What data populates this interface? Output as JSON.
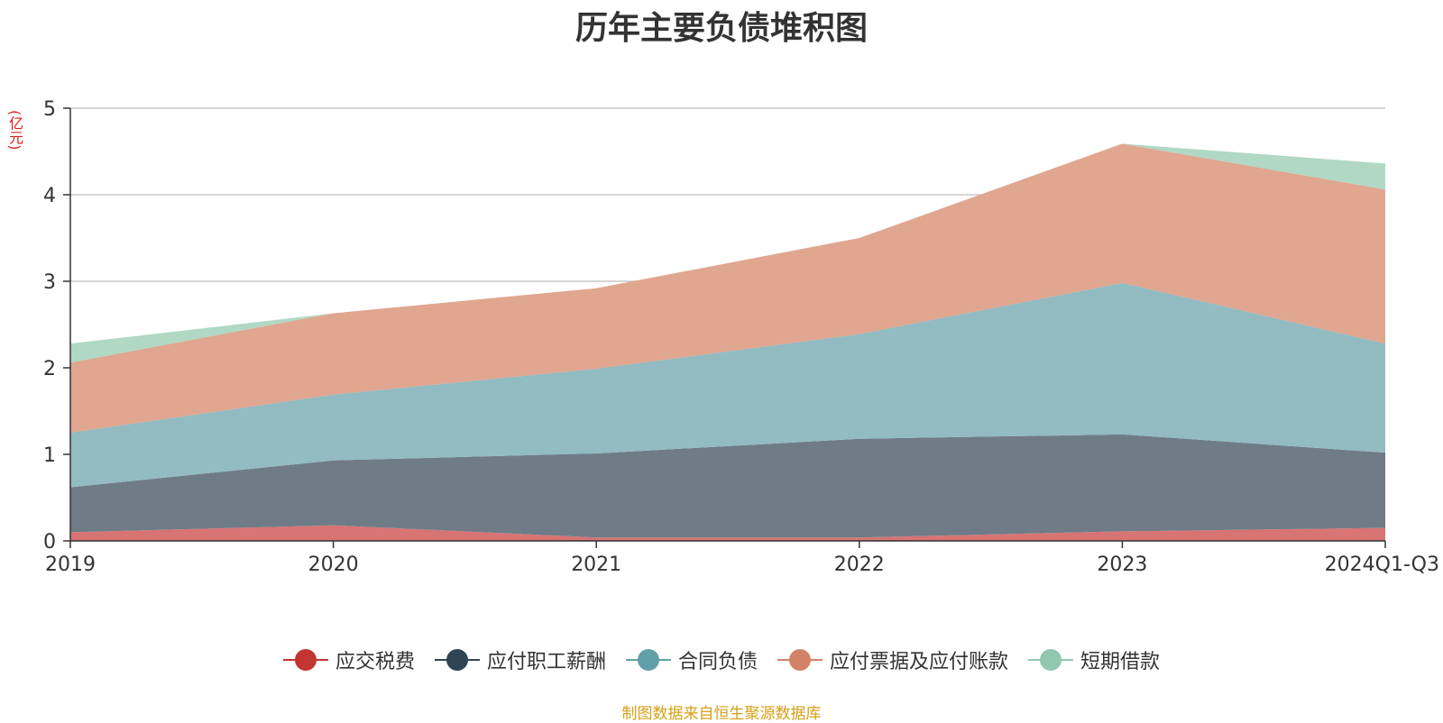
{
  "chart_data": {
    "type": "area",
    "stacked": true,
    "title": "历年主要负债堆积图",
    "unit_label": "(亿元)",
    "categories": [
      "2019",
      "2020",
      "2021",
      "2022",
      "2023",
      "2024Q1-Q3"
    ],
    "ylim": [
      0,
      5
    ],
    "yticks": [
      0,
      1,
      2,
      3,
      4,
      5
    ],
    "grid": true,
    "legend_position": "bottom",
    "series": [
      {
        "name": "应交税费",
        "color": "#c23531",
        "fill": "#d87474",
        "values": [
          0.1,
          0.18,
          0.04,
          0.04,
          0.11,
          0.15
        ]
      },
      {
        "name": "应付职工薪酬",
        "color": "#2f4554",
        "fill": "#6f7c87",
        "values": [
          0.52,
          0.75,
          0.97,
          1.14,
          1.12,
          0.87
        ]
      },
      {
        "name": "合同负债",
        "color": "#61a0a8",
        "fill": "#92bbc2",
        "values": [
          0.63,
          0.76,
          0.98,
          1.21,
          1.75,
          1.26
        ]
      },
      {
        "name": "应付票据及应付账款",
        "color": "#d48265",
        "fill": "#e0a690",
        "values": [
          0.81,
          0.94,
          0.93,
          1.11,
          1.61,
          1.78
        ]
      },
      {
        "name": "短期借款",
        "color": "#91c7ae",
        "fill": "#b0d8c4",
        "values": [
          0.22,
          0.0,
          0.0,
          0.0,
          0.0,
          0.3
        ]
      }
    ]
  },
  "source_text": "制图数据来自恒生聚源数据库"
}
